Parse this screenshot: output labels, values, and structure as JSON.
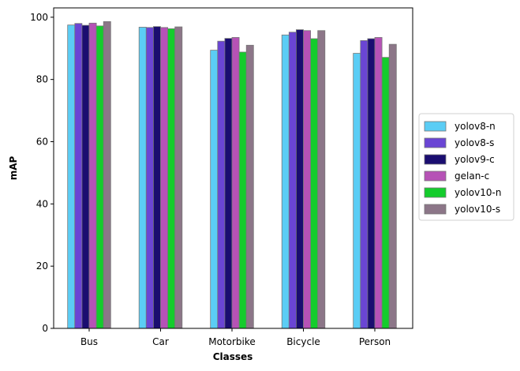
{
  "chart_data": {
    "type": "bar",
    "title": "",
    "xlabel": "Classes",
    "ylabel": "mAP",
    "ylim": [
      0,
      103
    ],
    "yticks": [
      0,
      20,
      40,
      60,
      80,
      100
    ],
    "categories": [
      "Bus",
      "Car",
      "Motorbike",
      "Bicycle",
      "Person"
    ],
    "grid": false,
    "legend_position": "right",
    "series": [
      {
        "name": "yolov8-n",
        "color": "#5bcdf5",
        "values": [
          97.5,
          96.8,
          89.4,
          94.3,
          88.4
        ]
      },
      {
        "name": "yolov8-s",
        "color": "#6a45d4",
        "values": [
          98.0,
          96.7,
          92.3,
          95.2,
          92.5
        ]
      },
      {
        "name": "yolov9-c",
        "color": "#1a0d70",
        "values": [
          97.4,
          97.0,
          93.2,
          96.0,
          93.1
        ]
      },
      {
        "name": "gelan-c",
        "color": "#b652b6",
        "values": [
          98.1,
          96.7,
          93.5,
          95.7,
          93.5
        ]
      },
      {
        "name": "yolov10-n",
        "color": "#14cc2c",
        "values": [
          97.2,
          96.3,
          88.8,
          93.1,
          87.1
        ]
      },
      {
        "name": "yolov10-s",
        "color": "#8c7688",
        "values": [
          98.6,
          96.9,
          91.0,
          95.7,
          91.3
        ]
      }
    ]
  }
}
